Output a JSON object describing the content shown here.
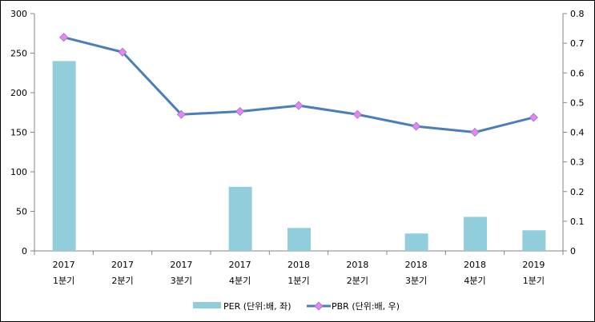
{
  "chart_data": {
    "type": "bar+line",
    "categories": [
      [
        "2017",
        "1분기"
      ],
      [
        "2017",
        "2분기"
      ],
      [
        "2017",
        "3분기"
      ],
      [
        "2017",
        "4분기"
      ],
      [
        "2018",
        "1분기"
      ],
      [
        "2018",
        "2분기"
      ],
      [
        "2018",
        "3분기"
      ],
      [
        "2018",
        "4분기"
      ],
      [
        "2019",
        "1분기"
      ]
    ],
    "series": [
      {
        "name": "PER (단위:배, 좌)",
        "type": "bar",
        "axis": "left",
        "color": "#92CDDC",
        "values": [
          240,
          null,
          null,
          81,
          29,
          null,
          22,
          43,
          26
        ]
      },
      {
        "name": "PBR (단위:배, 우)",
        "type": "line",
        "axis": "right",
        "color": "#4A7EBB",
        "marker_color": "#EE82EE",
        "values": [
          0.72,
          0.67,
          0.46,
          0.47,
          0.49,
          0.46,
          0.42,
          0.4,
          0.45
        ]
      }
    ],
    "left_axis": {
      "range": [
        0,
        300
      ],
      "ticks": [
        "0",
        "50",
        "100",
        "150",
        "200",
        "250",
        "300"
      ]
    },
    "right_axis": {
      "range": [
        0,
        0.8
      ],
      "ticks": [
        "0",
        "0.1",
        "0.2",
        "0.3",
        "0.4",
        "0.5",
        "0.6",
        "0.7",
        "0.8"
      ]
    },
    "grid": false,
    "legend": "bottom"
  }
}
